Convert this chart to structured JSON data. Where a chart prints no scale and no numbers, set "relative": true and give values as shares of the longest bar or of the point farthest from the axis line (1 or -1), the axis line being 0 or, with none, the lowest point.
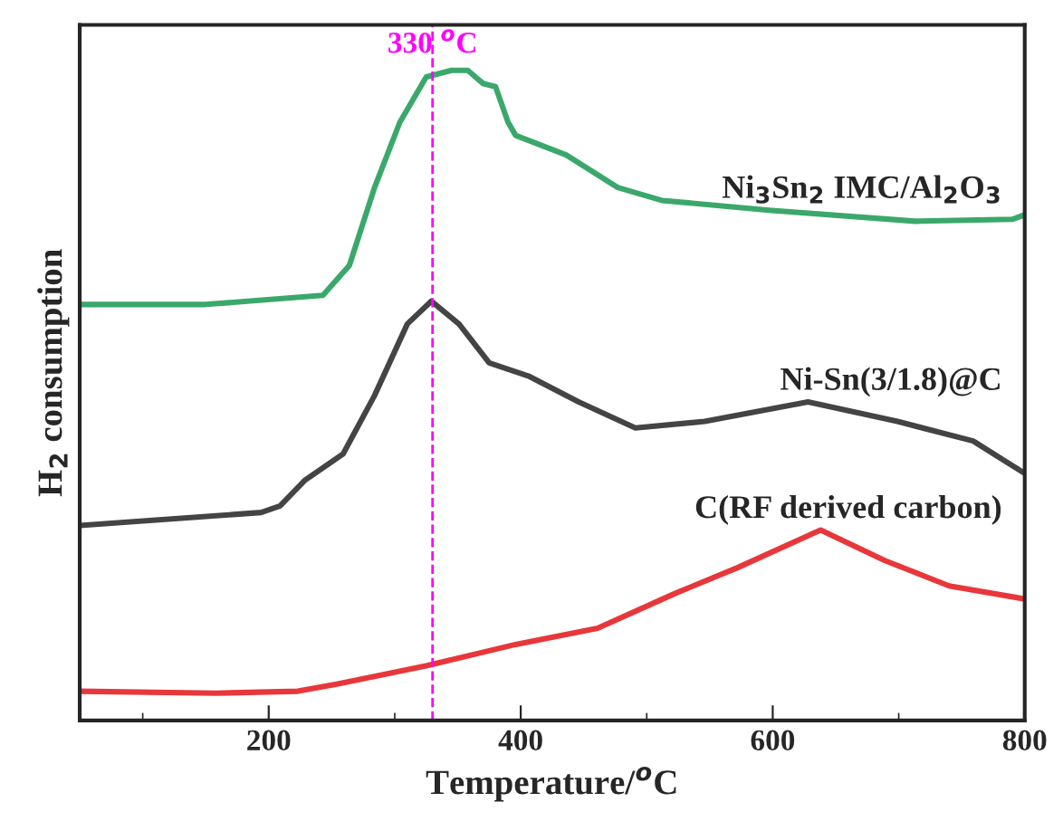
{
  "chart_data": {
    "type": "line",
    "relative": true,
    "xlabel": "Temperature/$^{o}$C",
    "ylabel": "H$_{2}$ consumption",
    "xlim": [
      50,
      800
    ],
    "xticks": [
      200,
      400,
      600,
      800
    ],
    "grid": false,
    "legend": false,
    "marker": "none",
    "line_style": "solid",
    "series": [
      {
        "name": "Ni$_{3}$Sn$_{2}$ IMC/Al$_{2}$O$_{3}$",
        "color": "#3aa86b",
        "x": [
          50,
          150,
          243,
          264,
          284,
          304,
          325,
          345,
          358,
          370,
          380,
          390,
          396,
          436,
          477,
          512,
          597,
          713,
          790,
          800
        ],
        "values": [
          0.64,
          0.64,
          0.654,
          0.7,
          0.82,
          0.92,
          0.99,
          1.0,
          1.0,
          0.98,
          0.975,
          0.92,
          0.9,
          0.87,
          0.82,
          0.8,
          0.785,
          0.768,
          0.771,
          0.778
        ]
      },
      {
        "name": "Ni-Sn(3/1.8)@C",
        "color": "#444444",
        "x": [
          50,
          194,
          209,
          229,
          259,
          284,
          310,
          329,
          351,
          375,
          406,
          446,
          491,
          546,
          628,
          699,
          759,
          800
        ],
        "values": [
          0.3,
          0.32,
          0.33,
          0.37,
          0.41,
          0.5,
          0.61,
          0.645,
          0.61,
          0.55,
          0.53,
          0.49,
          0.45,
          0.46,
          0.49,
          0.46,
          0.43,
          0.38
        ]
      },
      {
        "name": "C(RF derived carbon)",
        "color": "#e8373a",
        "x": [
          50,
          158,
          223,
          254,
          325,
          396,
          461,
          522,
          572,
          638,
          689,
          740,
          800
        ],
        "values": [
          0.045,
          0.042,
          0.045,
          0.056,
          0.084,
          0.117,
          0.142,
          0.195,
          0.235,
          0.293,
          0.246,
          0.207,
          0.187
        ]
      }
    ],
    "ref_lines": [
      {
        "axis": "x",
        "value": 330,
        "label": "330 $^{o}$C",
        "color": "#ff00ff",
        "line_style": "dashed"
      }
    ]
  }
}
